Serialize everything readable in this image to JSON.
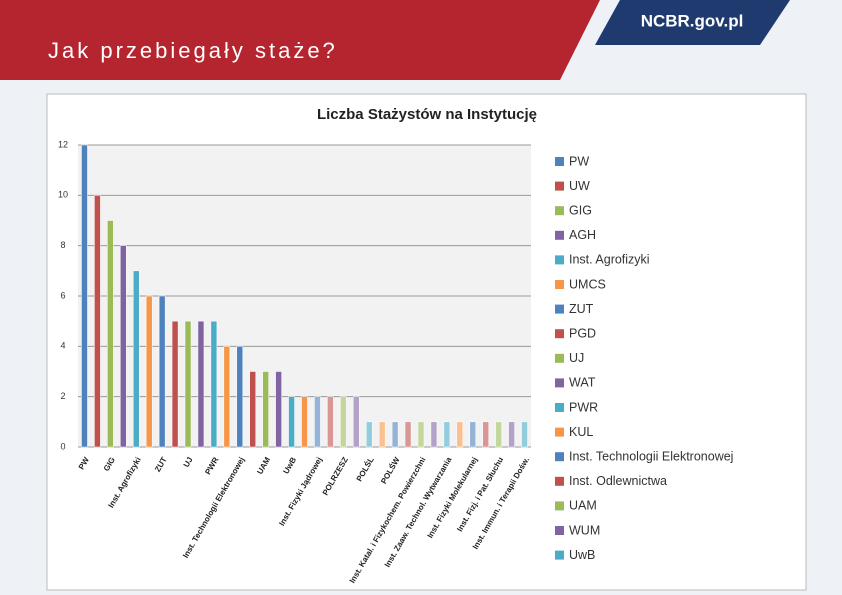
{
  "header": {
    "title": "Jak przebiegały staże?",
    "logo": "NCBR.gov.pl"
  },
  "chart_data": {
    "type": "bar",
    "title": "Liczba Stażystów na Instytucję",
    "categories": [
      "PW",
      null,
      "GIG",
      null,
      "Inst. Agrofizyki",
      null,
      "ZUT",
      null,
      "UJ",
      null,
      "PWR",
      null,
      "Inst. Technologii Elektronowej",
      null,
      "UAM",
      null,
      "UwB",
      null,
      "Inst. Fizyki Jądrowej",
      null,
      "POLRZESZ",
      null,
      "POLŚL",
      null,
      "POLŚW",
      null,
      "Inst. Katal. i Fizykochem. Powierzchni",
      null,
      "Inst. Zaaw. Technol. Wytwarzania",
      null,
      "Inst. Fizyki Molekularnej",
      null,
      "Inst. Fizj. i Pat. Słuchu",
      null,
      "Inst. Immun. i Terapii Dośw."
    ],
    "values": [
      12,
      10,
      9,
      8,
      7,
      6,
      6,
      5,
      5,
      5,
      5,
      4,
      4,
      3,
      3,
      3,
      2,
      2,
      2,
      2,
      2,
      2,
      1,
      1,
      1,
      1,
      1,
      1,
      1,
      1,
      1,
      1,
      1,
      1,
      1
    ],
    "colors": [
      "#4f81bd",
      "#c0504d",
      "#9bbb59",
      "#8064a2",
      "#4bacc6",
      "#f79646",
      "#4f81bd",
      "#c0504d",
      "#9bbb59",
      "#8064a2",
      "#4bacc6",
      "#f79646",
      "#4f81bd",
      "#c0504d",
      "#9bbb59",
      "#8064a2",
      "#4bacc6",
      "#f79646",
      "#95b3d7",
      "#d99694",
      "#c3d69b",
      "#b3a2c7",
      "#93cddd",
      "#fac090",
      "#95b3d7",
      "#d99694",
      "#c3d69b",
      "#b3a2c7",
      "#93cddd",
      "#fac090",
      "#95b3d7",
      "#d99694",
      "#c3d69b",
      "#b3a2c7",
      "#93cddd"
    ],
    "legend": [
      {
        "name": "PW",
        "color": "#4f81bd"
      },
      {
        "name": "UW",
        "color": "#c0504d"
      },
      {
        "name": "GIG",
        "color": "#9bbb59"
      },
      {
        "name": "AGH",
        "color": "#8064a2"
      },
      {
        "name": "Inst. Agrofizyki",
        "color": "#4bacc6"
      },
      {
        "name": "UMCS",
        "color": "#f79646"
      },
      {
        "name": "ZUT",
        "color": "#4f81bd"
      },
      {
        "name": "PGD",
        "color": "#c0504d"
      },
      {
        "name": "UJ",
        "color": "#9bbb59"
      },
      {
        "name": "WAT",
        "color": "#8064a2"
      },
      {
        "name": "PWR",
        "color": "#4bacc6"
      },
      {
        "name": "KUL",
        "color": "#f79646"
      },
      {
        "name": "Inst. Technologii Elektronowej",
        "color": "#4f81bd"
      },
      {
        "name": "Inst. Odlewnictwa",
        "color": "#c0504d"
      },
      {
        "name": "UAM",
        "color": "#9bbb59"
      },
      {
        "name": "WUM",
        "color": "#8064a2"
      },
      {
        "name": "UwB",
        "color": "#4bacc6"
      }
    ],
    "ylim": [
      0,
      12
    ],
    "yticks": [
      0,
      2,
      4,
      6,
      8,
      10,
      12
    ],
    "grid": true
  }
}
